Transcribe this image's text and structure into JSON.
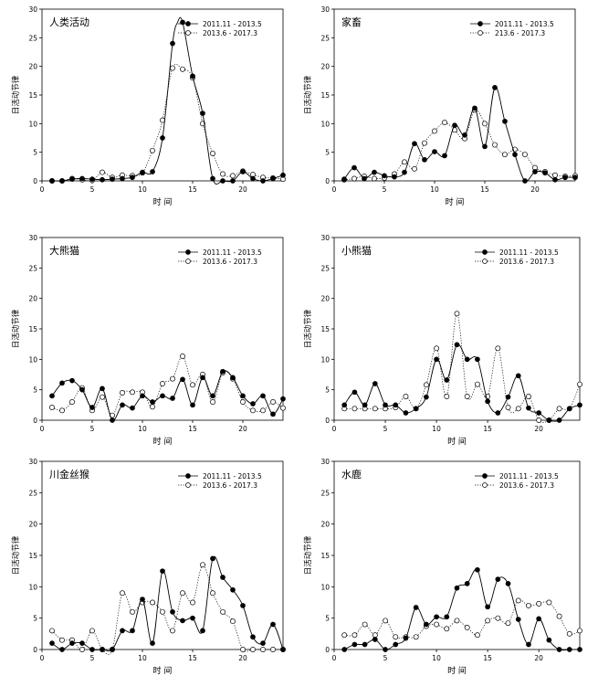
{
  "chart_data": [
    {
      "type": "line",
      "title": "人类活动",
      "xlabel": "时 间",
      "ylabel": "日活动节律",
      "xlim": [
        0,
        24
      ],
      "ylim": [
        0,
        30
      ],
      "xticks": [
        0,
        5,
        10,
        15,
        20
      ],
      "yticks": [
        0,
        5,
        10,
        15,
        20,
        25,
        30
      ],
      "legend_position": "top-right",
      "series": [
        {
          "name": "2011.11 - 2013.5",
          "style": "filled-solid",
          "x": [
            1,
            2,
            3,
            4,
            5,
            6,
            7,
            8,
            9,
            10,
            11,
            12,
            13,
            13.5,
            14,
            15,
            16,
            17,
            18,
            19,
            20,
            21,
            22,
            23,
            24
          ],
          "y": [
            0,
            0,
            0.3,
            0.4,
            0.3,
            0.2,
            0.3,
            0.4,
            0.6,
            1.5,
            1.6,
            7.5,
            24,
            27.7,
            27.7,
            18.3,
            11.8,
            0.4,
            0,
            0,
            1.6,
            0.4,
            0,
            0.4,
            1
          ]
        },
        {
          "name": "2013.6 - 2017.3",
          "style": "open-dotted",
          "x": [
            1,
            2,
            3,
            4,
            5,
            6,
            7,
            8,
            9,
            10,
            11,
            12,
            13,
            14,
            15,
            16,
            17,
            18,
            19,
            20,
            21,
            22,
            23,
            24
          ],
          "y": [
            0,
            0,
            0.4,
            0.2,
            0.1,
            1.5,
            0.6,
            1,
            0.9,
            1.4,
            5.3,
            10.6,
            19.7,
            19.5,
            18,
            10,
            4.8,
            1.2,
            0.9,
            1.7,
            1.1,
            0.6,
            0.5,
            0.3
          ]
        }
      ]
    },
    {
      "type": "line",
      "title": "家畜",
      "xlabel": "时 间",
      "ylabel": "日活动节律",
      "xlim": [
        0,
        24
      ],
      "ylim": [
        0,
        30
      ],
      "xticks": [
        0,
        5,
        10,
        15,
        20
      ],
      "yticks": [
        0,
        5,
        10,
        15,
        20,
        25,
        30
      ],
      "legend_position": "top-right",
      "series": [
        {
          "name": "2011.11 - 2013.5",
          "style": "filled-solid",
          "x": [
            1,
            2,
            3,
            4,
            5,
            6,
            7,
            8,
            9,
            10,
            11,
            12,
            13,
            14,
            15,
            16,
            17,
            18,
            19,
            20,
            21,
            22,
            23,
            24
          ],
          "y": [
            0.3,
            2.3,
            0.4,
            1.5,
            0.9,
            0.7,
            1.5,
            6.5,
            3.7,
            5.1,
            4.4,
            9.7,
            8,
            12.7,
            6,
            16.3,
            10.4,
            4.6,
            0,
            1.6,
            1.4,
            0.2,
            0.6,
            0.6
          ]
        },
        {
          "name": "213.6 - 2017.3",
          "style": "open-dotted",
          "x": [
            1,
            2,
            3,
            4,
            5,
            6,
            7,
            8,
            9,
            10,
            11,
            12,
            13,
            14,
            15,
            16,
            17,
            18,
            19,
            20,
            21,
            22,
            23,
            24
          ],
          "y": [
            0.2,
            0.4,
            0.8,
            0.4,
            0.5,
            1.2,
            3.3,
            2.1,
            6.6,
            8.7,
            10.2,
            8.9,
            7.4,
            12.4,
            10,
            6.3,
            4.6,
            5.5,
            4.6,
            2.3,
            1.6,
            1,
            0.8,
            0.9
          ]
        }
      ]
    },
    {
      "type": "line",
      "title": "大熊猫",
      "xlabel": "时 间",
      "ylabel": "日活动节律",
      "xlim": [
        0,
        24
      ],
      "ylim": [
        0,
        30
      ],
      "xticks": [
        0,
        5,
        10,
        15,
        20
      ],
      "yticks": [
        0,
        5,
        10,
        15,
        20,
        25,
        30
      ],
      "legend_position": "top-right",
      "series": [
        {
          "name": "2011.11 - 2013.5",
          "style": "filled-solid",
          "x": [
            1,
            2,
            3,
            4,
            5,
            6,
            7,
            8,
            9,
            10,
            11,
            12,
            13,
            14,
            15,
            16,
            17,
            18,
            19,
            20,
            21,
            22,
            23,
            24
          ],
          "y": [
            4,
            6.1,
            6.5,
            5,
            2.1,
            5.2,
            0,
            2.5,
            2,
            4,
            3,
            4,
            3.6,
            6.7,
            2.5,
            7,
            4,
            8,
            7,
            4,
            2.7,
            4,
            1,
            3.5
          ]
        },
        {
          "name": "2013.6 - 2017.3",
          "style": "open-dotted",
          "x": [
            1,
            2,
            3,
            4,
            5,
            6,
            7,
            8,
            9,
            10,
            11,
            12,
            13,
            14,
            15,
            16,
            17,
            18,
            19,
            20,
            21,
            22,
            23,
            24
          ],
          "y": [
            2.1,
            1.6,
            3,
            5.3,
            1.6,
            3.8,
            0.8,
            4.5,
            4.6,
            4.6,
            2.2,
            6,
            6.8,
            10.5,
            5.8,
            7.5,
            3,
            7.8,
            6.8,
            3,
            1.6,
            1.6,
            3,
            2
          ]
        }
      ]
    },
    {
      "type": "line",
      "title": "小熊猫",
      "xlabel": "时 间",
      "ylabel": "日活动节律",
      "xlim": [
        0,
        24
      ],
      "ylim": [
        0,
        30
      ],
      "xticks": [
        0,
        5,
        10,
        15,
        20
      ],
      "yticks": [
        0,
        5,
        10,
        15,
        20,
        25,
        30
      ],
      "legend_position": "top-right",
      "series": [
        {
          "name": "2011.11 - 2013.5",
          "style": "filled-solid",
          "x": [
            1,
            2,
            3,
            4,
            5,
            6,
            7,
            8,
            9,
            10,
            11,
            12,
            13,
            14,
            15,
            16,
            17,
            18,
            19,
            20,
            21,
            22,
            23,
            24
          ],
          "y": [
            2.5,
            4.6,
            2.5,
            6,
            2.5,
            2.5,
            1.2,
            1.9,
            3.8,
            10,
            6.6,
            12.4,
            10,
            10,
            3.1,
            1.2,
            3.8,
            7.3,
            2,
            1.2,
            0,
            0,
            1.9,
            2.5
          ]
        },
        {
          "name": "2013.6 - 2017.3",
          "style": "open-dotted",
          "x": [
            1,
            2,
            3,
            4,
            5,
            6,
            7,
            8,
            9,
            10,
            11,
            12,
            13,
            14,
            15,
            16,
            17,
            18,
            19,
            20,
            21,
            22,
            23,
            24
          ],
          "y": [
            1.9,
            1.9,
            1.9,
            1.9,
            1.9,
            2.1,
            3.9,
            1.9,
            5.8,
            11.8,
            3.9,
            17.5,
            3.9,
            5.9,
            3.9,
            11.8,
            2.1,
            1.9,
            3.9,
            0,
            0,
            1.9,
            1.9,
            5.9
          ]
        }
      ]
    },
    {
      "type": "line",
      "title": "川金丝猴",
      "xlabel": "时 间",
      "ylabel": "日活动节律",
      "xlim": [
        0,
        24
      ],
      "ylim": [
        0,
        30
      ],
      "xticks": [
        0,
        5,
        10,
        15,
        20
      ],
      "yticks": [
        0,
        5,
        10,
        15,
        20,
        25,
        30
      ],
      "legend_position": "top-right",
      "series": [
        {
          "name": "2011.11 - 2013.5",
          "style": "filled-solid",
          "x": [
            1,
            2,
            3,
            4,
            5,
            6,
            7,
            8,
            9,
            10,
            11,
            12,
            13,
            14,
            15,
            16,
            17,
            18,
            19,
            20,
            21,
            22,
            23,
            24
          ],
          "y": [
            1,
            0,
            1,
            1,
            0,
            0,
            0,
            3,
            3,
            8,
            1,
            12.5,
            6,
            4.6,
            5,
            3,
            14.5,
            11.5,
            9.5,
            7,
            2,
            1,
            4,
            0
          ]
        },
        {
          "name": "2013.6 - 2017.3",
          "style": "open-dotted",
          "x": [
            1,
            2,
            3,
            4,
            5,
            6,
            7,
            8,
            9,
            10,
            11,
            12,
            13,
            14,
            15,
            16,
            17,
            18,
            19,
            20,
            21,
            22,
            23,
            24
          ],
          "y": [
            3,
            1.5,
            1.5,
            0,
            3,
            0,
            0,
            9,
            6,
            7.5,
            7.5,
            6,
            3,
            9,
            7.5,
            13.5,
            9,
            6,
            4.5,
            0,
            0,
            0,
            0,
            0
          ]
        }
      ]
    },
    {
      "type": "line",
      "title": "水鹿",
      "xlabel": "时 间",
      "ylabel": "日活动节律",
      "xlim": [
        0,
        24
      ],
      "ylim": [
        0,
        30
      ],
      "xticks": [
        0,
        5,
        10,
        15,
        20
      ],
      "yticks": [
        0,
        5,
        10,
        15,
        20,
        25,
        30
      ],
      "legend_position": "top-right",
      "series": [
        {
          "name": "2011.11 - 2013.5",
          "style": "filled-solid",
          "x": [
            1,
            2,
            3,
            4,
            5,
            6,
            7,
            8,
            9,
            10,
            11,
            12,
            13,
            14,
            15,
            16,
            17,
            18,
            19,
            20,
            21,
            22,
            23,
            24
          ],
          "y": [
            0,
            0.8,
            0.8,
            1.6,
            0,
            0.8,
            1.8,
            6.7,
            4,
            5.2,
            5.2,
            9.8,
            10.5,
            12.7,
            6.8,
            11.2,
            10.5,
            4.8,
            0.8,
            4.9,
            1.5,
            0,
            0,
            0
          ]
        },
        {
          "name": "2013.6 - 2017.3",
          "style": "open-dotted",
          "x": [
            1,
            2,
            3,
            4,
            5,
            6,
            7,
            8,
            9,
            10,
            11,
            12,
            13,
            14,
            15,
            16,
            17,
            18,
            19,
            20,
            21,
            22,
            23,
            24
          ],
          "y": [
            2.3,
            2.3,
            4,
            2.3,
            4.6,
            2,
            2,
            2,
            3.7,
            4,
            3.3,
            4.6,
            3.5,
            2.3,
            4.6,
            5,
            4.2,
            7.8,
            7,
            7.3,
            7.5,
            5.3,
            2.5,
            3
          ]
        }
      ]
    }
  ]
}
